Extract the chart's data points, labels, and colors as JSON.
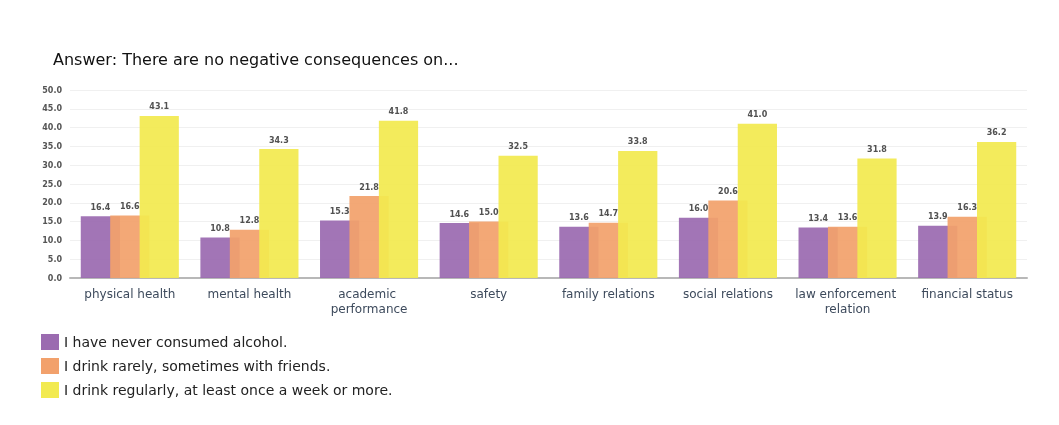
{
  "chart_data": {
    "type": "bar",
    "title": "Answer: There are no negative consequences on...",
    "categories": [
      "physical health",
      "mental health",
      "academic performance",
      "safety",
      "family relations",
      "social relations",
      "law enforcement relation",
      "financial status"
    ],
    "series": [
      {
        "name": "I have never consumed alcohol.",
        "color": "#9b6bb0",
        "values": [
          16.4,
          10.8,
          15.3,
          14.6,
          13.6,
          16.0,
          13.4,
          13.9
        ],
        "value_labels": [
          "16.4",
          "10.8",
          "15.3",
          "14.6",
          "13.6",
          "16.0",
          "13.4",
          "13.9"
        ]
      },
      {
        "name": "I drink rarely, sometimes with friends.",
        "color": "#f2a16c",
        "values": [
          16.6,
          12.8,
          21.8,
          15.0,
          14.7,
          20.6,
          13.6,
          16.3
        ],
        "value_labels": [
          "16.6",
          "12.8",
          "21.8",
          "15.0",
          "14.7",
          "20.6",
          "13.6",
          "16.3"
        ]
      },
      {
        "name": "I drink regularly, at least once a week or more.",
        "color": "#f2ea50",
        "values": [
          43.1,
          34.3,
          41.8,
          32.5,
          33.8,
          41.0,
          31.8,
          36.2
        ],
        "value_labels": [
          "43.1",
          "34.3",
          "41.8",
          "32.5",
          "33.8",
          "41.0",
          "31.8",
          "36.2"
        ]
      }
    ],
    "ylim": [
      0,
      50
    ],
    "yticks": [
      {
        "value": 0,
        "label": "0.0"
      },
      {
        "value": 5,
        "label": "5.0"
      },
      {
        "value": 10,
        "label": "10.0"
      },
      {
        "value": 15,
        "label": "15.0"
      },
      {
        "value": 20,
        "label": "20.0"
      },
      {
        "value": 25,
        "label": "25.0"
      },
      {
        "value": 30,
        "label": "30.0"
      },
      {
        "value": 35,
        "label": "35.0"
      },
      {
        "value": 40,
        "label": "40.0"
      },
      {
        "value": 45,
        "label": "45.0"
      },
      {
        "value": 50,
        "label": "50.0"
      }
    ],
    "grid": "y",
    "legend": "bottom left"
  }
}
